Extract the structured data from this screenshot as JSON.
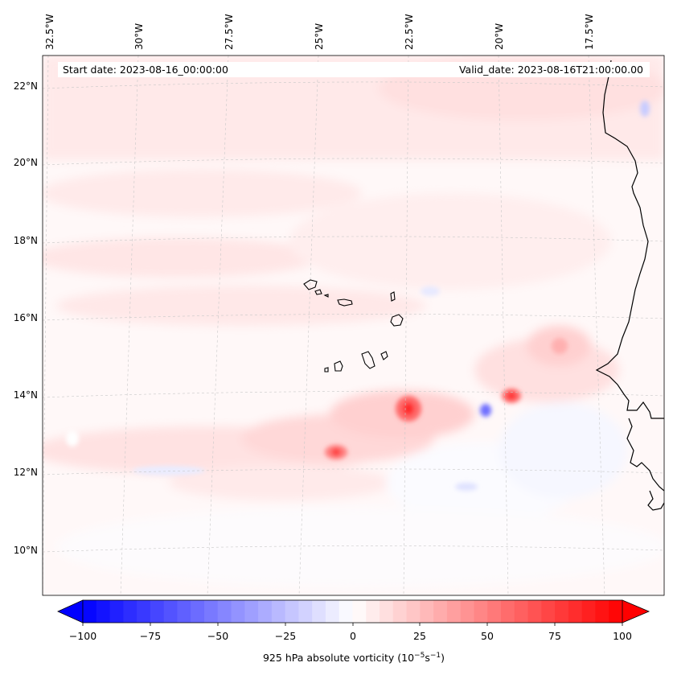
{
  "header": {
    "start_date": "Start date: 2023-08-16_00:00:00",
    "valid_date": "Valid_date: 2023-08-16T21:00:00.00"
  },
  "map": {
    "longitude_labels": [
      "32.5°W",
      "30°W",
      "27.5°W",
      "25°W",
      "22.5°W",
      "20°W",
      "17.5°W"
    ],
    "latitude_labels": [
      "22°N",
      "20°N",
      "18°N",
      "16°N",
      "14°N",
      "12°N",
      "10°N"
    ]
  },
  "colorbar": {
    "label_prefix": "925 hPa absolute vorticity (10",
    "label_exp1": "−5",
    "label_mid": "s",
    "label_exp2": "−1",
    "label_suffix": ")",
    "ticks": [
      "−100",
      "−75",
      "−50",
      "−25",
      "0",
      "25",
      "50",
      "75",
      "100"
    ],
    "min_color": "#0000ff",
    "mid_color": "#ffffff",
    "max_color": "#ff0000"
  }
}
